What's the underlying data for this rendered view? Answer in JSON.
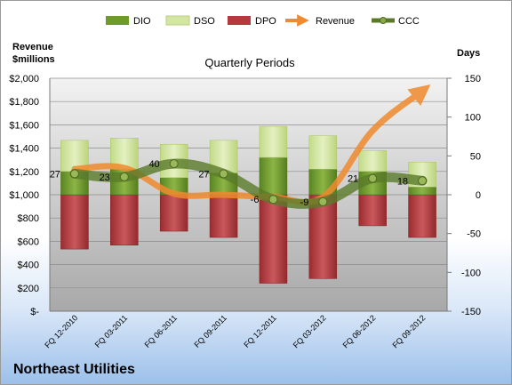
{
  "company": "Northeast Utilities",
  "chart_data": {
    "type": "bar",
    "title": "Quarterly Periods",
    "left_axis_header": [
      "Revenue",
      "$millions"
    ],
    "right_axis_header": "Days",
    "categories": [
      "FQ 12-2010",
      "FQ 03-2011",
      "FQ 06-2011",
      "FQ 09-2011",
      "FQ 12-2011",
      "FQ 03-2012",
      "FQ 06-2012",
      "FQ 09-2012"
    ],
    "left_ylim": [
      0,
      2000
    ],
    "left_ticks": [
      0,
      200,
      400,
      600,
      800,
      1000,
      1200,
      1400,
      1600,
      1800,
      2000
    ],
    "left_tick_labels": [
      "$-",
      "$200",
      "$400",
      "$600",
      "$800",
      "$1,000",
      "$1,200",
      "$1,400",
      "$1,600",
      "$1,800",
      "$2,000"
    ],
    "right_ylim": [
      -150,
      150
    ],
    "right_ticks": [
      -150,
      -100,
      -50,
      0,
      50,
      100,
      150
    ],
    "right_tick_labels": [
      "-150",
      "-100",
      "-50",
      "0",
      "50",
      "100",
      "150"
    ],
    "series": [
      {
        "name": "DIO",
        "axis": "days",
        "kind": "stacked-bar",
        "values": [
          30,
          33,
          22,
          28,
          48,
          33,
          30,
          10
        ]
      },
      {
        "name": "DSO",
        "axis": "days",
        "kind": "stacked-bar",
        "values": [
          40,
          40,
          43,
          42,
          40,
          43,
          27,
          32
        ]
      },
      {
        "name": "DPO",
        "axis": "days",
        "kind": "bar-negative",
        "values": [
          -70,
          -65,
          -47,
          -55,
          -114,
          -108,
          -40,
          -55
        ]
      },
      {
        "name": "Revenue",
        "axis": "revenue",
        "kind": "line",
        "values": [
          1220,
          1230,
          1010,
          1000,
          980,
          980,
          1550,
          1890
        ]
      },
      {
        "name": "CCC",
        "axis": "days",
        "kind": "line",
        "values": [
          27,
          23,
          40,
          27,
          -6,
          -9,
          21,
          18
        ]
      }
    ],
    "ccc_labels": [
      "27",
      "23",
      "40",
      "27",
      "-6",
      "-9",
      "21",
      "18"
    ],
    "legend_position": "top",
    "grid": true,
    "colors": {
      "DIO": "#6f9a2c",
      "DSO": "#d4e6a2",
      "DPO": "#b53a3e",
      "Revenue": "#f08a2e",
      "CCC": "#5a7a2a",
      "plot_bg": "#c9c9c9"
    }
  }
}
